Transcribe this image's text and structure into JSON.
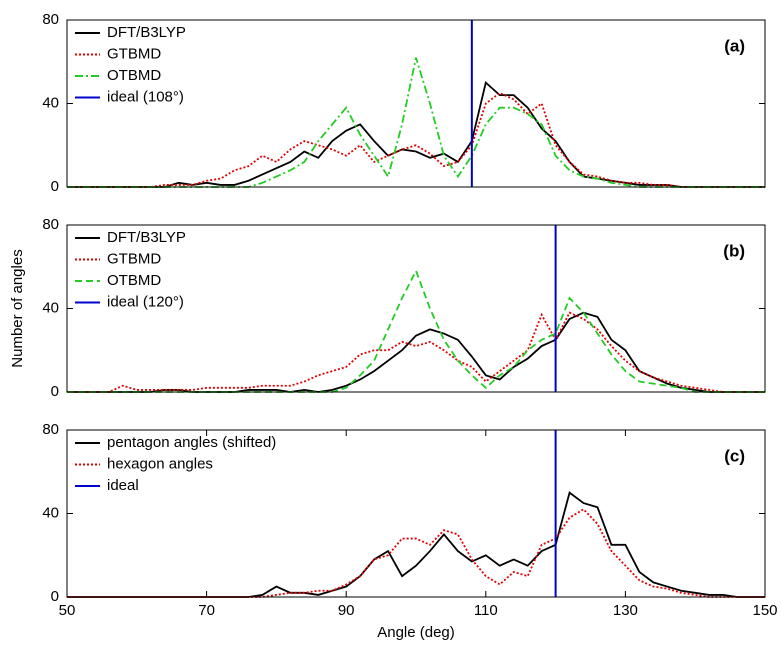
{
  "chart_data": [
    {
      "type": "line",
      "label": "(a)",
      "legend_position": "upper left",
      "xlim": [
        50,
        150
      ],
      "ylim": [
        0,
        80
      ],
      "yticks": [
        0,
        40,
        80
      ],
      "x": [
        50,
        52,
        54,
        56,
        58,
        60,
        62,
        64,
        66,
        68,
        70,
        72,
        74,
        76,
        78,
        80,
        82,
        84,
        86,
        88,
        90,
        92,
        94,
        96,
        98,
        100,
        102,
        104,
        106,
        108,
        110,
        112,
        114,
        116,
        118,
        120,
        122,
        124,
        126,
        128,
        130,
        132,
        134,
        136,
        138,
        140,
        142,
        144,
        146,
        148,
        150
      ],
      "series": [
        {
          "name": "DFT/B3LYP",
          "color": "#000000",
          "style": "solid",
          "values": [
            0,
            0,
            0,
            0,
            0,
            0,
            0,
            0,
            2,
            1,
            2,
            1,
            1,
            3,
            6,
            9,
            12,
            17,
            14,
            22,
            27,
            30,
            22,
            15,
            18,
            17,
            14,
            16,
            12,
            22,
            50,
            44,
            44,
            38,
            28,
            22,
            12,
            5,
            4,
            3,
            2,
            1,
            1,
            1,
            0,
            0,
            0,
            0,
            0,
            0,
            0
          ]
        },
        {
          "name": "GTBMD",
          "color": "#e00000",
          "style": "dotted",
          "values": [
            0,
            0,
            0,
            0,
            0,
            0,
            0,
            1,
            1,
            1,
            3,
            4,
            8,
            10,
            15,
            12,
            18,
            22,
            20,
            18,
            15,
            20,
            12,
            15,
            18,
            20,
            16,
            10,
            12,
            20,
            40,
            45,
            42,
            35,
            40,
            20,
            12,
            6,
            5,
            3,
            2,
            2,
            1,
            1,
            0,
            0,
            0,
            0,
            0,
            0,
            0
          ]
        },
        {
          "name": "OTBMD",
          "color": "#22cc22",
          "style": "dashdot",
          "values": [
            0,
            0,
            0,
            0,
            0,
            0,
            0,
            0,
            0,
            0,
            0,
            0,
            0,
            0,
            2,
            5,
            8,
            12,
            22,
            30,
            38,
            25,
            15,
            5,
            30,
            62,
            40,
            15,
            5,
            15,
            30,
            38,
            38,
            35,
            30,
            15,
            8,
            5,
            4,
            2,
            1,
            0,
            0,
            0,
            0,
            0,
            0,
            0,
            0,
            0,
            0
          ]
        },
        {
          "name": "ideal (108°)",
          "color": "#0000cc",
          "style": "solid",
          "x": [
            108,
            108
          ],
          "values": [
            0,
            80
          ]
        }
      ]
    },
    {
      "type": "line",
      "label": "(b)",
      "legend_position": "upper left",
      "ylabel": "Number of angles",
      "xlim": [
        50,
        150
      ],
      "ylim": [
        0,
        80
      ],
      "yticks": [
        0,
        40,
        80
      ],
      "x": [
        50,
        52,
        54,
        56,
        58,
        60,
        62,
        64,
        66,
        68,
        70,
        72,
        74,
        76,
        78,
        80,
        82,
        84,
        86,
        88,
        90,
        92,
        94,
        96,
        98,
        100,
        102,
        104,
        106,
        108,
        110,
        112,
        114,
        116,
        118,
        120,
        122,
        124,
        126,
        128,
        130,
        132,
        134,
        136,
        138,
        140,
        142,
        144,
        146,
        148,
        150
      ],
      "series": [
        {
          "name": "DFT/B3LYP",
          "color": "#000000",
          "style": "solid",
          "values": [
            0,
            0,
            0,
            0,
            0,
            0,
            0,
            1,
            1,
            0,
            0,
            0,
            0,
            1,
            1,
            1,
            0,
            1,
            0,
            1,
            3,
            6,
            10,
            15,
            20,
            27,
            30,
            28,
            25,
            17,
            8,
            6,
            12,
            16,
            22,
            25,
            35,
            38,
            36,
            25,
            20,
            10,
            7,
            4,
            2,
            1,
            0,
            0,
            0,
            0,
            0
          ]
        },
        {
          "name": "GTBMD",
          "color": "#e00000",
          "style": "dotted",
          "values": [
            0,
            0,
            0,
            0,
            3,
            1,
            1,
            1,
            1,
            1,
            2,
            2,
            2,
            2,
            3,
            3,
            3,
            5,
            8,
            10,
            12,
            18,
            20,
            20,
            24,
            22,
            24,
            20,
            15,
            12,
            5,
            10,
            15,
            20,
            37,
            25,
            38,
            35,
            30,
            22,
            15,
            10,
            7,
            5,
            3,
            2,
            1,
            0,
            0,
            0,
            0
          ]
        },
        {
          "name": "OTBMD",
          "color": "#22cc22",
          "style": "dashed",
          "values": [
            0,
            0,
            0,
            0,
            0,
            0,
            0,
            0,
            0,
            0,
            0,
            0,
            0,
            0,
            0,
            0,
            0,
            0,
            0,
            0,
            2,
            8,
            15,
            30,
            45,
            58,
            40,
            25,
            15,
            8,
            2,
            8,
            12,
            20,
            25,
            28,
            45,
            38,
            28,
            18,
            10,
            5,
            4,
            3,
            2,
            0,
            0,
            0,
            0,
            0,
            0
          ]
        },
        {
          "name": "ideal (120°)",
          "color": "#0000cc",
          "style": "solid",
          "x": [
            120,
            120
          ],
          "values": [
            0,
            80
          ]
        }
      ]
    },
    {
      "type": "line",
      "label": "(c)",
      "legend_position": "upper left",
      "xlabel": "Angle (deg)",
      "xlim": [
        50,
        150
      ],
      "xticks": [
        50,
        70,
        90,
        110,
        130,
        150
      ],
      "ylim": [
        0,
        80
      ],
      "yticks": [
        0,
        40,
        80
      ],
      "x": [
        50,
        52,
        54,
        56,
        58,
        60,
        62,
        64,
        66,
        68,
        70,
        72,
        74,
        76,
        78,
        80,
        82,
        84,
        86,
        88,
        90,
        92,
        94,
        96,
        98,
        100,
        102,
        104,
        106,
        108,
        110,
        112,
        114,
        116,
        118,
        120,
        122,
        124,
        126,
        128,
        130,
        132,
        134,
        136,
        138,
        140,
        142,
        144,
        146,
        148,
        150
      ],
      "series": [
        {
          "name": "pentagon angles (shifted)",
          "color": "#000000",
          "style": "solid",
          "values": [
            0,
            0,
            0,
            0,
            0,
            0,
            0,
            0,
            0,
            0,
            0,
            0,
            0,
            0,
            1,
            5,
            2,
            2,
            1,
            3,
            5,
            10,
            18,
            22,
            10,
            15,
            22,
            30,
            22,
            17,
            20,
            15,
            18,
            15,
            22,
            25,
            50,
            45,
            43,
            25,
            25,
            12,
            7,
            5,
            3,
            2,
            1,
            1,
            0,
            0,
            0
          ]
        },
        {
          "name": "hexagon angles",
          "color": "#e00000",
          "style": "dotted",
          "values": [
            0,
            0,
            0,
            0,
            0,
            0,
            0,
            0,
            0,
            0,
            0,
            0,
            0,
            0,
            0,
            1,
            2,
            2,
            3,
            3,
            6,
            10,
            18,
            20,
            28,
            28,
            25,
            32,
            30,
            18,
            10,
            6,
            12,
            10,
            25,
            28,
            38,
            42,
            35,
            22,
            15,
            8,
            5,
            4,
            2,
            1,
            0,
            0,
            0,
            0,
            0
          ]
        },
        {
          "name": "ideal",
          "color": "#0000cc",
          "style": "solid",
          "x": [
            120,
            120
          ],
          "values": [
            0,
            80
          ]
        }
      ]
    }
  ]
}
